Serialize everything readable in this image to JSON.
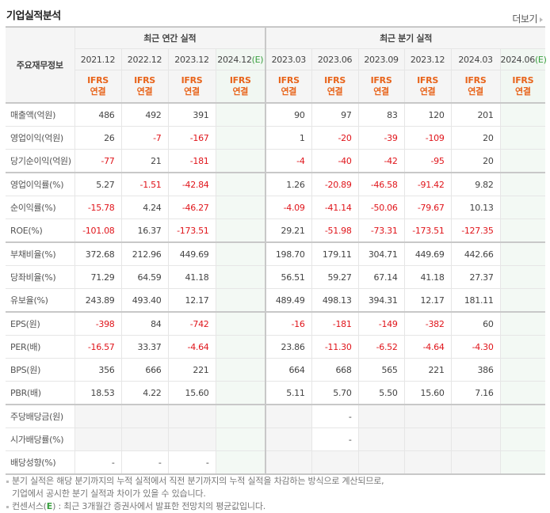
{
  "header": {
    "title": "기업실적분석",
    "more_label": "더보기"
  },
  "table": {
    "label_header": "주요재무정보",
    "groups": {
      "annual": "최근 연간 실적",
      "quarterly": "최근 분기 실적"
    },
    "periods": {
      "annual": [
        "2021.12",
        "2022.12",
        "2023.12",
        "2024.12"
      ],
      "annual_est_mark": "(E)",
      "quarterly": [
        "2023.03",
        "2023.06",
        "2023.09",
        "2023.12",
        "2024.03",
        "2024.06"
      ],
      "quarterly_est_mark": "(E)"
    },
    "ifrs": {
      "line1": "IFRS",
      "line2": "연결"
    },
    "rows": [
      {
        "label": "매출액(억원)",
        "annual": [
          "486",
          "492",
          "391",
          ""
        ],
        "quarterly": [
          "90",
          "97",
          "83",
          "120",
          "201",
          ""
        ]
      },
      {
        "label": "영업이익(억원)",
        "annual": [
          "26",
          "-7",
          "-167",
          ""
        ],
        "quarterly": [
          "1",
          "-20",
          "-39",
          "-109",
          "20",
          ""
        ]
      },
      {
        "label": "당기순이익(억원)",
        "annual": [
          "-77",
          "21",
          "-181",
          ""
        ],
        "quarterly": [
          "-4",
          "-40",
          "-42",
          "-95",
          "20",
          ""
        ]
      },
      {
        "label": "영업이익률(%)",
        "annual": [
          "5.27",
          "-1.51",
          "-42.84",
          ""
        ],
        "quarterly": [
          "1.26",
          "-20.89",
          "-46.58",
          "-91.42",
          "9.82",
          ""
        ]
      },
      {
        "label": "순이익률(%)",
        "annual": [
          "-15.78",
          "4.24",
          "-46.27",
          ""
        ],
        "quarterly": [
          "-4.09",
          "-41.14",
          "-50.06",
          "-79.67",
          "10.13",
          ""
        ]
      },
      {
        "label": "ROE(%)",
        "annual": [
          "-101.08",
          "16.37",
          "-173.51",
          ""
        ],
        "quarterly": [
          "29.21",
          "-51.98",
          "-73.31",
          "-173.51",
          "-127.35",
          ""
        ]
      },
      {
        "label": "부채비율(%)",
        "annual": [
          "372.68",
          "212.96",
          "449.69",
          ""
        ],
        "quarterly": [
          "198.70",
          "179.11",
          "304.71",
          "449.69",
          "442.66",
          ""
        ]
      },
      {
        "label": "당좌비율(%)",
        "annual": [
          "71.29",
          "64.59",
          "41.18",
          ""
        ],
        "quarterly": [
          "56.51",
          "59.27",
          "67.14",
          "41.18",
          "27.37",
          ""
        ]
      },
      {
        "label": "유보율(%)",
        "annual": [
          "243.89",
          "493.40",
          "12.17",
          ""
        ],
        "quarterly": [
          "489.49",
          "498.13",
          "394.31",
          "12.17",
          "181.11",
          ""
        ]
      },
      {
        "label": "EPS(원)",
        "annual": [
          "-398",
          "84",
          "-742",
          ""
        ],
        "quarterly": [
          "-16",
          "-181",
          "-149",
          "-382",
          "60",
          ""
        ]
      },
      {
        "label": "PER(배)",
        "annual": [
          "-16.57",
          "33.37",
          "-4.64",
          ""
        ],
        "quarterly": [
          "23.86",
          "-11.30",
          "-6.52",
          "-4.64",
          "-4.30",
          ""
        ]
      },
      {
        "label": "BPS(원)",
        "annual": [
          "356",
          "666",
          "221",
          ""
        ],
        "quarterly": [
          "664",
          "668",
          "565",
          "221",
          "386",
          ""
        ]
      },
      {
        "label": "PBR(배)",
        "annual": [
          "18.53",
          "4.22",
          "15.60",
          ""
        ],
        "quarterly": [
          "5.11",
          "5.70",
          "5.50",
          "15.60",
          "7.16",
          ""
        ]
      },
      {
        "label": "주당배당금(원)",
        "annual": [
          "",
          "",
          "",
          ""
        ],
        "quarterly": [
          "",
          "-",
          "",
          "",
          "",
          ""
        ]
      },
      {
        "label": "시가배당률(%)",
        "annual": [
          "",
          "",
          "",
          ""
        ],
        "quarterly": [
          "",
          "-",
          "",
          "",
          "",
          ""
        ]
      },
      {
        "label": "배당성향(%)",
        "annual": [
          "-",
          "-",
          "-",
          ""
        ],
        "quarterly": [
          "",
          "",
          "",
          "",
          "",
          ""
        ]
      }
    ]
  },
  "notes": {
    "line1": "분기 실적은 해당 분기까지의 누적 실적에서 직전 분기까지의 누적 실적을 차감하는 방식으로 계산되므로,",
    "line2": "기업에서 공시한 분기 실적과 차이가 있을 수 있습니다.",
    "line3_prefix": "컨센서스(",
    "line3_e": "E",
    "line3_suffix": ") : 최근 3개월간 증권사에서 발표한 전망치의 평균값입니다."
  },
  "colors": {
    "negative": "#e0151b",
    "ifrs": "#e8641b",
    "estimate_mark": "#3aa040",
    "estimate_bg": "#f3f9f4"
  }
}
